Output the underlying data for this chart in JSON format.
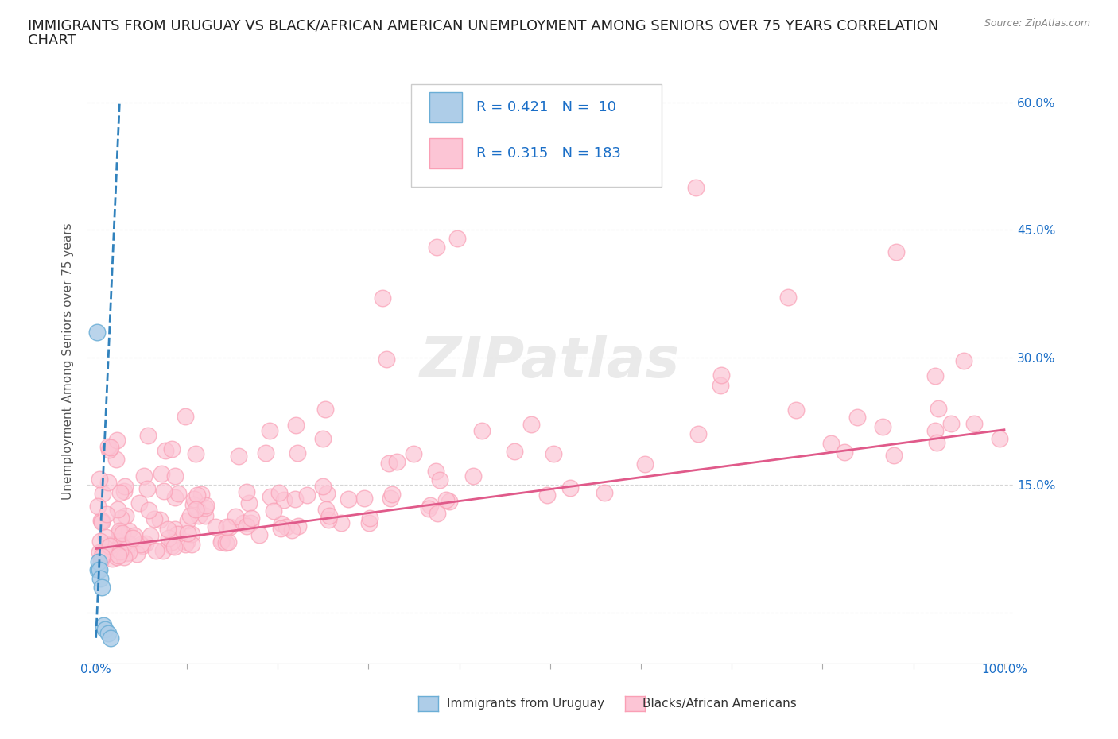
{
  "title_line1": "IMMIGRANTS FROM URUGUAY VS BLACK/AFRICAN AMERICAN UNEMPLOYMENT AMONG SENIORS OVER 75 YEARS CORRELATION",
  "title_line2": "CHART",
  "source": "Source: ZipAtlas.com",
  "ylabel": "Unemployment Among Seniors over 75 years",
  "ytick_vals": [
    0.0,
    0.15,
    0.3,
    0.45,
    0.6
  ],
  "ytick_labels": [
    "",
    "15.0%",
    "30.0%",
    "45.0%",
    "60.0%"
  ],
  "legend_r1": "R = 0.421",
  "legend_n1": "N =  10",
  "legend_r2": "R = 0.315",
  "legend_n2": "N = 183",
  "color_blue_fill": "#aecde8",
  "color_blue_edge": "#6baed6",
  "color_blue_line": "#3182bd",
  "color_pink_fill": "#fcc5d5",
  "color_pink_edge": "#fa9fb5",
  "color_pink_line": "#e05a8a",
  "color_text_blue": "#1a6ec7",
  "color_grid": "#cccccc",
  "background": "#ffffff",
  "watermark_text": "ZIPatlas",
  "bottom_legend_blue": "Immigrants from Uruguay",
  "bottom_legend_pink": "Blacks/African Americans",
  "title_fontsize": 13,
  "axis_label_fontsize": 11,
  "tick_fontsize": 11,
  "legend_fontsize": 13
}
